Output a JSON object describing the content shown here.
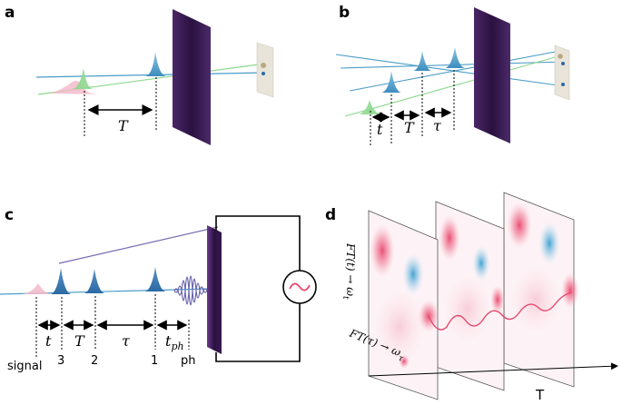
{
  "panels": {
    "a": {
      "label": "a",
      "delay_label": "T"
    },
    "b": {
      "label": "b",
      "delay_labels": [
        "t",
        "T",
        "τ"
      ]
    },
    "c": {
      "label": "c",
      "delay_labels": [
        "t",
        "T",
        "τ"
      ],
      "tph_main": "t",
      "tph_sub": "ph",
      "pulse_labels": [
        "signal",
        "3",
        "2",
        "1",
        "ph"
      ]
    },
    "d": {
      "label": "d",
      "y_axis_label": "FT(t) → ω",
      "y_axis_sub": "t",
      "x_axis_label": "FT(τ) → ω",
      "x_axis_sub": "τ",
      "t_axis_label": "T"
    }
  },
  "colors": {
    "blue_beam": "#4a9cc7",
    "blue_pulse": "#5a9ec9",
    "green_beam": "#8ed88e",
    "pink_pulse": "#f2b8c8",
    "sample_dark": "#2a1140",
    "sample_mid": "#5a2a78",
    "detector_bg": "#e8e4da",
    "map_red": "#e8476c",
    "map_blue": "#49a6d4"
  },
  "icons": {
    "ac_source": "ac-source-icon",
    "detector": "detector-card-icon",
    "sample": "sample-plate-icon"
  }
}
